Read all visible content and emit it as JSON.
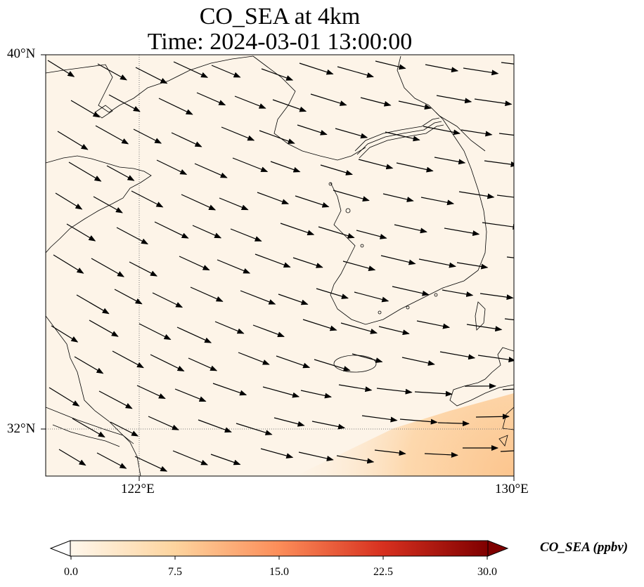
{
  "figure": {
    "title_line1": "CO_SEA at 4km",
    "title_line2": "Time: 2024-03-01 13:00:00"
  },
  "map": {
    "lon_range": [
      119.5,
      130
    ],
    "lat_range": [
      31,
      40
    ],
    "lat_ticks": [
      {
        "value": 40,
        "label": "40°N"
      },
      {
        "value": 32,
        "label": "32°N"
      }
    ],
    "lon_ticks": [
      {
        "value": 122,
        "label": "122°E"
      },
      {
        "value": 130,
        "label": "130°E"
      }
    ],
    "gridlines": "dotted at 122°E and 32°N",
    "field_colors": {
      "background": "#fdf4e8",
      "high": "#fcc58e"
    },
    "wind_direction": "west-northwest to east-southeast"
  },
  "colorbar": {
    "label": "CO_SEA (ppbv)",
    "min": 0.0,
    "max": 30.0,
    "extend": "both",
    "ticks": [
      "0.0",
      "7.5",
      "15.0",
      "22.5",
      "30.0"
    ],
    "cmap": [
      "#fff7ec",
      "#fdd49e",
      "#fc8d59",
      "#d7301f",
      "#7f0000"
    ]
  }
}
